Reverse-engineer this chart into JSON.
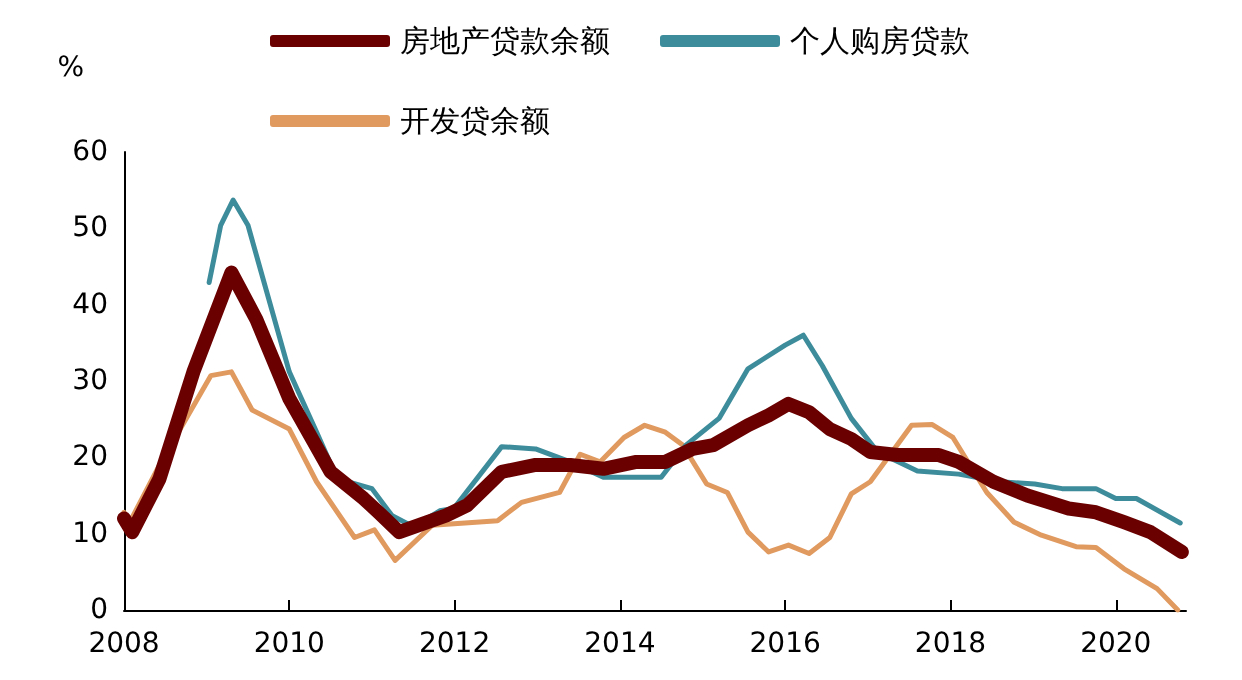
{
  "chart_data": {
    "type": "line",
    "ylabel": "%",
    "xlim": [
      2008,
      2020.85
    ],
    "xticks": [
      2008,
      2010,
      2012,
      2014,
      2016,
      2018,
      2020
    ],
    "ylim": [
      0,
      60
    ],
    "yticks": [
      0,
      10,
      20,
      30,
      40,
      50,
      60
    ],
    "grid": false,
    "legend": "top",
    "marker": "none",
    "line_style": "solid",
    "series": [
      {
        "name": "房地产贷款余额",
        "color": "#6b0000",
        "x": [
          2008.0,
          2008.1,
          2008.43,
          2008.84,
          2009.3,
          2009.6,
          2010.0,
          2010.5,
          2010.9,
          2011.08,
          2011.33,
          2011.9,
          2012.15,
          2012.57,
          2012.98,
          2013.4,
          2013.8,
          2014.2,
          2014.55,
          2014.88,
          2015.13,
          2015.55,
          2015.8,
          2016.04,
          2016.29,
          2016.54,
          2016.8,
          2017.03,
          2017.36,
          2017.86,
          2018.1,
          2018.52,
          2018.93,
          2019.43,
          2019.76,
          2020.1,
          2020.42,
          2020.8
        ],
        "values": [
          12.0,
          10.2,
          17.2,
          31.2,
          44.2,
          38.1,
          27.7,
          18.1,
          14.6,
          12.8,
          10.2,
          12.4,
          13.7,
          18.1,
          19.0,
          19.0,
          18.5,
          19.4,
          19.4,
          21.1,
          21.6,
          24.2,
          25.5,
          27.0,
          25.9,
          23.7,
          22.4,
          20.7,
          20.3,
          20.3,
          19.4,
          16.8,
          15.0,
          13.3,
          12.8,
          11.5,
          10.2,
          7.6
        ]
      },
      {
        "name": "个人购房贷款",
        "color": "#3d8c9b",
        "x": [
          2009.03,
          2009.17,
          2009.32,
          2009.5,
          2009.75,
          2010.0,
          2010.33,
          2010.58,
          2011.0,
          2011.24,
          2011.5,
          2011.82,
          2011.99,
          2012.57,
          2012.98,
          2013.4,
          2013.8,
          2014.2,
          2014.5,
          2014.8,
          2015.2,
          2015.55,
          2016.0,
          2016.22,
          2016.45,
          2016.8,
          2017.12,
          2017.6,
          2018.1,
          2018.6,
          2019.02,
          2019.35,
          2019.76,
          2020.0,
          2020.25,
          2020.78
        ],
        "values": [
          42.9,
          50.4,
          53.7,
          50.4,
          40.8,
          31.2,
          23.3,
          17.2,
          15.9,
          12.4,
          10.9,
          13.0,
          13.3,
          21.4,
          21.1,
          19.4,
          17.4,
          17.4,
          17.4,
          21.6,
          25.1,
          31.6,
          34.7,
          36.0,
          32.0,
          25.1,
          20.7,
          18.2,
          17.8,
          16.8,
          16.5,
          15.9,
          15.9,
          14.6,
          14.6,
          11.4
        ]
      },
      {
        "name": "开发贷余额",
        "color": "#e0995f",
        "x": [
          2008.0,
          2008.06,
          2008.43,
          2009.05,
          2009.3,
          2009.55,
          2010.0,
          2010.33,
          2010.79,
          2011.03,
          2011.28,
          2011.73,
          2012.52,
          2012.81,
          2013.27,
          2013.52,
          2013.76,
          2014.05,
          2014.3,
          2014.55,
          2014.76,
          2015.05,
          2015.3,
          2015.55,
          2015.8,
          2016.04,
          2016.29,
          2016.54,
          2016.8,
          2017.03,
          2017.53,
          2017.78,
          2018.03,
          2018.44,
          2018.77,
          2019.1,
          2019.52,
          2019.76,
          2020.1,
          2020.5,
          2020.75
        ],
        "values": [
          12.8,
          11.3,
          19.0,
          30.7,
          31.2,
          26.2,
          23.7,
          16.8,
          9.5,
          10.5,
          6.5,
          11.1,
          11.7,
          14.1,
          15.4,
          20.4,
          19.4,
          22.6,
          24.2,
          23.3,
          21.6,
          16.5,
          15.4,
          10.2,
          7.6,
          8.5,
          7.4,
          9.5,
          15.2,
          16.8,
          24.2,
          24.3,
          22.6,
          15.4,
          11.5,
          9.8,
          8.3,
          8.2,
          5.4,
          2.8,
          0
        ]
      }
    ]
  }
}
